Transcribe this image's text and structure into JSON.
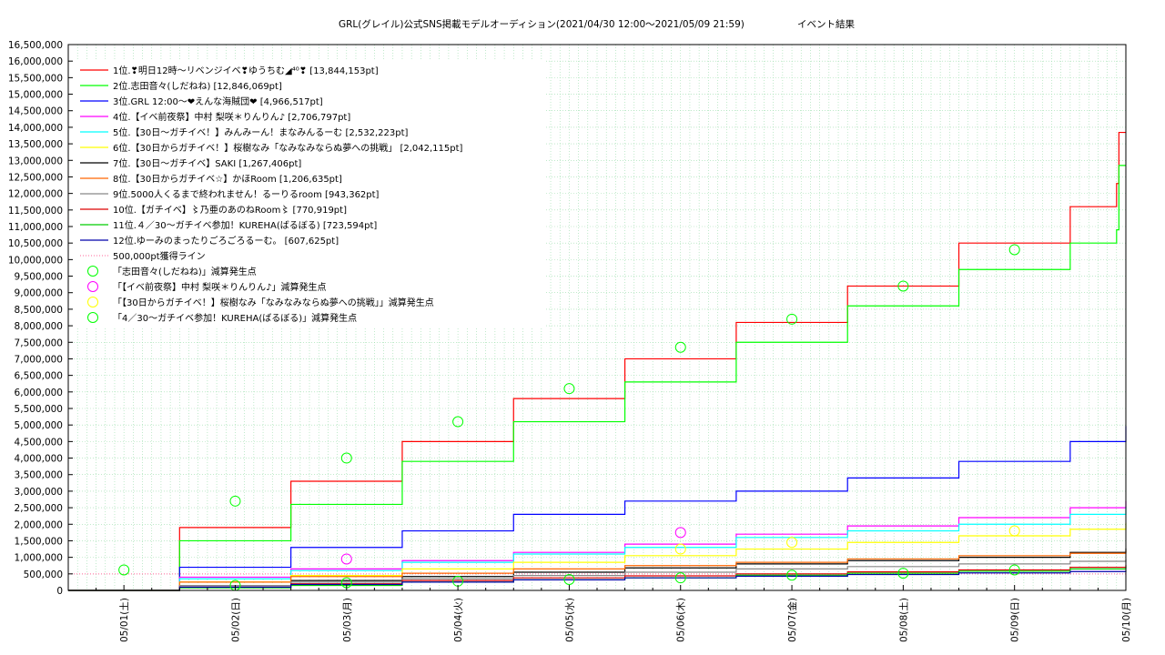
{
  "chart_data": {
    "type": "line",
    "title": "GRL(グレイル)公式SNS掲載モデルオーディション(2021/04/30 12:00〜2021/05/09 21:59)",
    "title_suffix": "イベント結果",
    "xlabel": "",
    "ylabel": "",
    "x_ticks": [
      "05/01(土)",
      "05/02(日)",
      "05/03(月)",
      "05/04(火)",
      "05/05(水)",
      "05/06(木)",
      "05/07(金)",
      "05/08(土)",
      "05/09(日)",
      "05/10(月)"
    ],
    "xlim": [
      "2021-04-30 12:00",
      "2021-05-10 00:00"
    ],
    "y_ticks": [
      "0",
      "500,000",
      "1,000,000",
      "1,500,000",
      "2,000,000",
      "2,500,000",
      "3,000,000",
      "3,500,000",
      "4,000,000",
      "4,500,000",
      "5,000,000",
      "5,500,000",
      "6,000,000",
      "6,500,000",
      "7,000,000",
      "7,500,000",
      "8,000,000",
      "8,500,000",
      "9,000,000",
      "9,500,000",
      "10,000,000",
      "10,500,000",
      "11,000,000",
      "11,500,000",
      "12,000,000",
      "12,500,000",
      "13,000,000",
      "13,500,000",
      "14,000,000",
      "14,500,000",
      "15,000,000",
      "15,500,000",
      "16,000,000",
      "16,500,000"
    ],
    "ylim": [
      0,
      16500000
    ],
    "grid": true,
    "legend_position": "top-left",
    "x_unit": "hours elapsed since 2021-04-30 12:00",
    "series": [
      {
        "name": "1位.❣明日12時〜リベンジイベ❣ゆうちむ◢⁴⁰❣ [13,844,153pt]",
        "color": "#ff0000",
        "x": [
          0,
          24,
          48,
          72,
          96,
          120,
          144,
          168,
          192,
          216,
          226,
          226.5,
          228
        ],
        "y": [
          0,
          1900000,
          3300000,
          4500000,
          5800000,
          7000000,
          8100000,
          9200000,
          10500000,
          11600000,
          12300000,
          13844153,
          13844153
        ]
      },
      {
        "name": "2位.志田音々(しだねね) [12,846,069pt]",
        "color": "#00ff00",
        "x": [
          0,
          24,
          48,
          72,
          96,
          120,
          144,
          168,
          192,
          216,
          226,
          226.5,
          228
        ],
        "y": [
          0,
          1500000,
          2600000,
          3900000,
          5100000,
          6300000,
          7500000,
          8600000,
          9700000,
          10500000,
          10900000,
          12846069,
          12846069
        ]
      },
      {
        "name": "3位.GRL 12:00〜❤えんな海賊団❤ [4,966,517pt]",
        "color": "#0000ff",
        "x": [
          0,
          24,
          48,
          72,
          96,
          120,
          144,
          168,
          192,
          216,
          228
        ],
        "y": [
          0,
          700000,
          1300000,
          1800000,
          2300000,
          2700000,
          3000000,
          3400000,
          3900000,
          4500000,
          4966517
        ]
      },
      {
        "name": "4位.【イベ前夜祭】中村 梨咲＊りんりん♪ [2,706,797pt]",
        "color": "#ff00ff",
        "x": [
          0,
          24,
          48,
          72,
          96,
          120,
          144,
          168,
          192,
          216,
          228
        ],
        "y": [
          0,
          400000,
          650000,
          900000,
          1150000,
          1400000,
          1700000,
          1950000,
          2200000,
          2500000,
          2706797
        ]
      },
      {
        "name": "5位.【30日〜ガチイベ！】みんみーん！まなみんるーむ [2,532,223pt]",
        "color": "#00ffff",
        "x": [
          0,
          24,
          48,
          72,
          96,
          120,
          144,
          168,
          192,
          216,
          228
        ],
        "y": [
          0,
          350000,
          600000,
          850000,
          1100000,
          1300000,
          1600000,
          1800000,
          2000000,
          2300000,
          2532223
        ]
      },
      {
        "name": "6位.【30日からガチイベ！】桜樹なみ「なみなみならぬ夢への挑戦」 [2,042,115pt]",
        "color": "#ffff00",
        "x": [
          0,
          24,
          48,
          72,
          96,
          120,
          144,
          168,
          192,
          216,
          228
        ],
        "y": [
          0,
          250000,
          450000,
          650000,
          850000,
          1050000,
          1250000,
          1450000,
          1650000,
          1850000,
          2042115
        ]
      },
      {
        "name": "7位.【30日〜ガチイベ】SAKI [1,267,406pt]",
        "color": "#000000",
        "x": [
          0,
          24,
          48,
          72,
          96,
          120,
          144,
          168,
          192,
          216,
          228
        ],
        "y": [
          0,
          150000,
          300000,
          420000,
          550000,
          680000,
          800000,
          900000,
          1000000,
          1150000,
          1267406
        ]
      },
      {
        "name": "8位.【30日からガチイベ☆】かほRoom [1,206,635pt]",
        "color": "#ff6600",
        "x": [
          0,
          24,
          48,
          72,
          96,
          120,
          144,
          168,
          192,
          216,
          228
        ],
        "y": [
          0,
          250000,
          420000,
          520000,
          650000,
          750000,
          850000,
          950000,
          1050000,
          1120000,
          1206635
        ]
      },
      {
        "name": "9位.5000人くるまで終われません！るーりるroom [943,362pt]",
        "color": "#888888",
        "x": [
          0,
          24,
          48,
          72,
          96,
          120,
          144,
          168,
          192,
          216,
          228
        ],
        "y": [
          0,
          150000,
          250000,
          350000,
          450000,
          550000,
          650000,
          720000,
          800000,
          880000,
          943362
        ]
      },
      {
        "name": "10位.【ガチイベ】〻乃亜のあのねRoom〻 [770,919pt]",
        "color": "#dd0000",
        "x": [
          0,
          24,
          48,
          72,
          96,
          120,
          144,
          168,
          192,
          216,
          228
        ],
        "y": [
          0,
          100000,
          200000,
          300000,
          380000,
          440000,
          500000,
          560000,
          620000,
          700000,
          770919
        ]
      },
      {
        "name": "11位.４／30〜ガチイベ参加！KUREHA(ばるぼる) [723,594pt]",
        "color": "#00cc00",
        "x": [
          0,
          24,
          48,
          72,
          96,
          120,
          144,
          168,
          192,
          216,
          228
        ],
        "y": [
          0,
          80000,
          150000,
          250000,
          320000,
          380000,
          460000,
          520000,
          580000,
          650000,
          723594
        ]
      },
      {
        "name": "12位.ゆーみのまったりごろごろるーむ。 [607,625pt]",
        "color": "#0000aa",
        "x": [
          0,
          24,
          48,
          72,
          96,
          120,
          144,
          168,
          192,
          216,
          228
        ],
        "y": [
          0,
          100000,
          180000,
          250000,
          320000,
          380000,
          430000,
          480000,
          530000,
          570000,
          607625
        ]
      }
    ],
    "reference_line": {
      "name": "500,000pt獲得ライン",
      "color": "#ff6699",
      "y": 500000
    },
    "marker_groups": [
      {
        "name": "「志田音々(しだねね)」減算発生点",
        "color": "#00ff00",
        "points": [
          [
            12,
            620000
          ],
          [
            36,
            2700000
          ],
          [
            60,
            4000000
          ],
          [
            84,
            5100000
          ],
          [
            108,
            6100000
          ],
          [
            132,
            7350000
          ],
          [
            156,
            8200000
          ],
          [
            180,
            9200000
          ],
          [
            204,
            10300000
          ]
        ]
      },
      {
        "name": "「【イベ前夜祭】中村 梨咲＊りんりん♪」減算発生点",
        "color": "#ff00ff",
        "points": [
          [
            60,
            950000
          ],
          [
            132,
            1750000
          ]
        ]
      },
      {
        "name": "「【30日からガチイベ！】桜樹なみ「なみなみならぬ夢への挑戦」」減算発生点",
        "color": "#ffff00",
        "points": [
          [
            132,
            1250000
          ],
          [
            156,
            1450000
          ],
          [
            204,
            1800000
          ]
        ]
      },
      {
        "name": "「4／30〜ガチイベ参加！KUREHA(ばるぼる)」減算発生点",
        "color": "#00ff00",
        "points": [
          [
            36,
            150000
          ],
          [
            60,
            230000
          ],
          [
            84,
            280000
          ],
          [
            108,
            330000
          ],
          [
            132,
            380000
          ],
          [
            156,
            460000
          ],
          [
            180,
            520000
          ],
          [
            204,
            620000
          ]
        ]
      }
    ]
  }
}
